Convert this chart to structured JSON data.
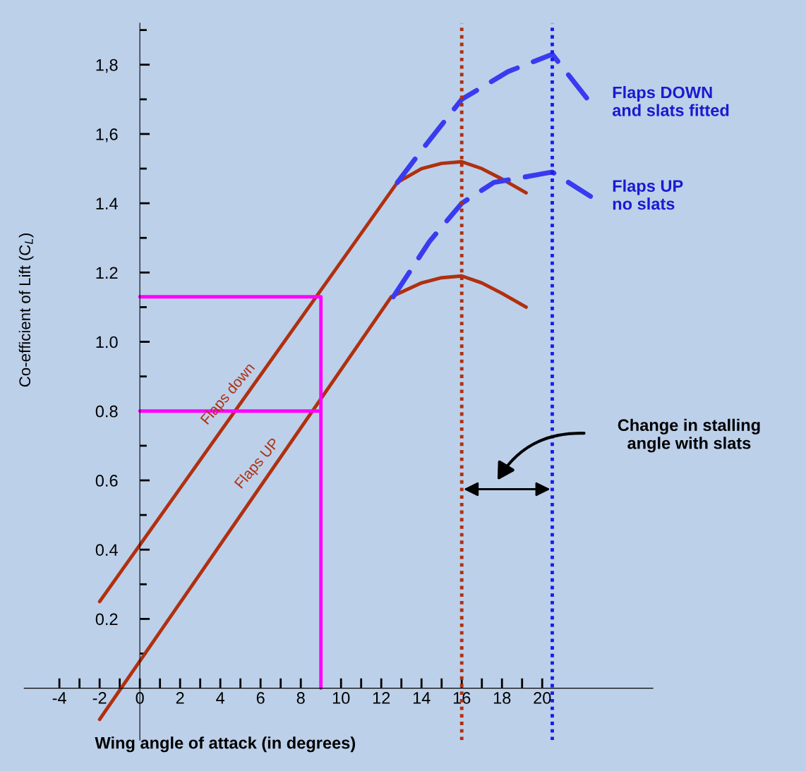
{
  "chart_data": {
    "type": "line",
    "xlabel": "Wing angle of attack (in degrees)",
    "ylabel": "Co-efficient of Lift (C$_{L}$)",
    "xlim": [
      -5.75,
      25.5
    ],
    "ylim": [
      -0.15,
      1.92
    ],
    "xticks": [
      -4,
      {
        "value": -3,
        "label": null
      },
      -2,
      {
        "value": -1,
        "label": null
      },
      0,
      {
        "value": 1,
        "label": null
      },
      2,
      {
        "value": 3,
        "label": null
      },
      4,
      {
        "value": 5,
        "label": null
      },
      6,
      {
        "value": 7,
        "label": null
      },
      8,
      {
        "value": 9,
        "label": null
      },
      10,
      {
        "value": 11,
        "label": null
      },
      12,
      {
        "value": 13,
        "label": null
      },
      14,
      {
        "value": 15,
        "label": null
      },
      16,
      {
        "value": 17,
        "label": null
      },
      18,
      {
        "value": 19,
        "label": null
      },
      20
    ],
    "yticks": [
      {
        "value": 0.1,
        "label": null
      },
      0.2,
      {
        "value": 0.3,
        "label": null
      },
      0.4,
      {
        "value": 0.5,
        "label": null
      },
      0.6,
      {
        "value": 0.7,
        "label": null
      },
      0.8,
      {
        "value": 0.9,
        "label": null
      },
      {
        "value": 1.0,
        "label": "1.0"
      },
      {
        "value": 1.1,
        "label": null
      },
      1.2,
      {
        "value": 1.3,
        "label": null
      },
      1.4,
      {
        "value": 1.5,
        "label": null
      },
      {
        "value": 1.6,
        "label": "1,6"
      },
      {
        "value": 1.7,
        "label": null
      },
      {
        "value": 1.8,
        "label": "1,8"
      },
      {
        "value": 1.9,
        "label": null
      }
    ],
    "grid": false,
    "legend": false,
    "marker": "none",
    "series": [
      {
        "name": "Flaps down",
        "color": "#b0300f",
        "line_style": "solid",
        "x": [
          -2,
          12.8,
          14,
          15,
          16,
          17,
          18,
          19.2
        ],
        "values": [
          0.25,
          1.46,
          1.5,
          1.515,
          1.52,
          1.5,
          1.47,
          1.43
        ]
      },
      {
        "name": "Flaps UP",
        "color": "#b0300f",
        "line_style": "solid",
        "x": [
          -2,
          12.5,
          14,
          15,
          16,
          17,
          18,
          19.2
        ],
        "values": [
          -0.09,
          1.13,
          1.17,
          1.185,
          1.19,
          1.17,
          1.14,
          1.1
        ]
      },
      {
        "name": "Flaps DOWN\nand slats fitted",
        "color": "#3a3af0",
        "line_style": "dashed",
        "x": [
          12.8,
          14.1,
          16,
          18.3,
          20.5,
          22.4
        ],
        "values": [
          1.46,
          1.56,
          1.7,
          1.78,
          1.83,
          1.69
        ]
      },
      {
        "name": "Flaps UP\nno slats",
        "color": "#3a3af0",
        "line_style": "dashed",
        "x": [
          12.6,
          14.4,
          16,
          17.6,
          20.5,
          22.4
        ],
        "values": [
          1.13,
          1.29,
          1.4,
          1.46,
          1.49,
          1.42
        ]
      },
      {
        "color": "#ff00ff",
        "line_style": "solid",
        "x": [
          0,
          9,
          9
        ],
        "values": [
          0.8,
          0.8,
          0
        ]
      },
      {
        "color": "#ff00ff",
        "line_style": "solid",
        "x": [
          0,
          9,
          9
        ],
        "values": [
          1.13,
          1.13,
          0.8
        ]
      }
    ],
    "ref_lines": [
      {
        "axis": "x",
        "value": 16,
        "label": null,
        "color": "#b0300f",
        "line_style": "dotted"
      },
      {
        "axis": "x",
        "value": 20.5,
        "label": null,
        "color": "#1a1af0",
        "line_style": "dotted"
      }
    ],
    "annotations": [
      "Change in stalling\nangle with slats"
    ]
  }
}
